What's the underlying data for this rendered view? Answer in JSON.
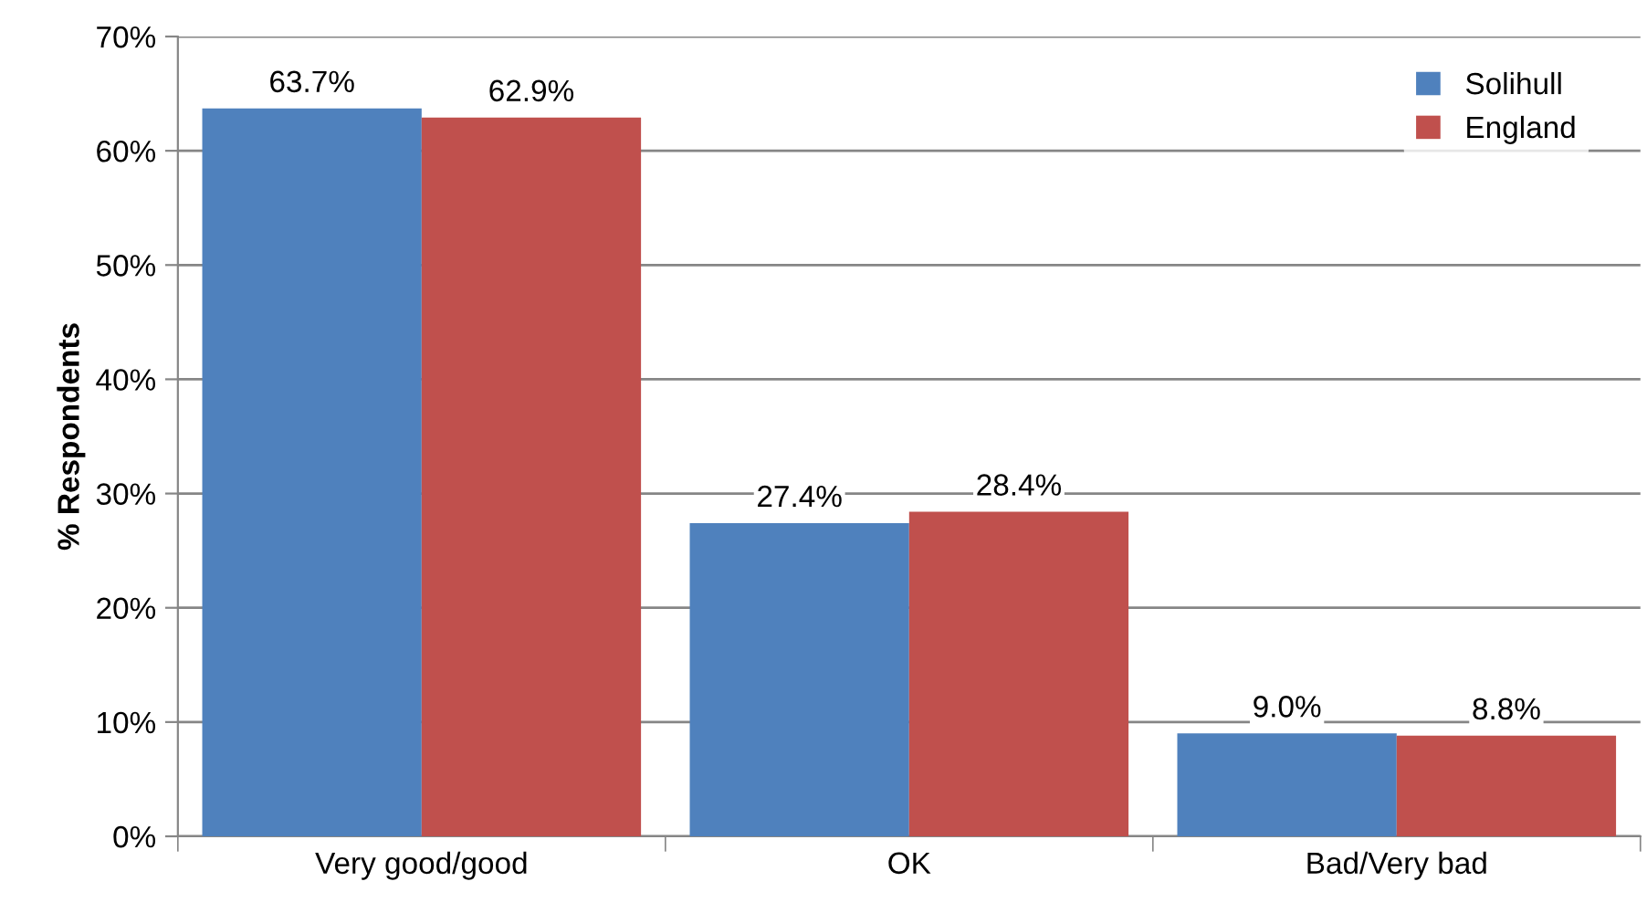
{
  "chart_data": {
    "type": "bar",
    "ylabel": "% Respondents",
    "categories": [
      "Very good/good",
      "OK",
      "Bad/Very bad"
    ],
    "series": [
      {
        "name": "Solihull",
        "color": "#4f81bd",
        "values": [
          63.7,
          27.4,
          9.0
        ],
        "value_labels": [
          "63.7%",
          "27.4%",
          "9.0%"
        ]
      },
      {
        "name": "England",
        "color": "#c0504d",
        "values": [
          62.9,
          28.4,
          8.8
        ],
        "value_labels": [
          "62.9%",
          "28.4%",
          "8.8%"
        ]
      }
    ],
    "ylim": [
      0,
      70
    ],
    "yticks": [
      {
        "value": 0,
        "label": "0%"
      },
      {
        "value": 10,
        "label": "10%"
      },
      {
        "value": 20,
        "label": "20%"
      },
      {
        "value": 30,
        "label": "30%"
      },
      {
        "value": 40,
        "label": "40%"
      },
      {
        "value": 50,
        "label": "50%"
      },
      {
        "value": 60,
        "label": "60%"
      },
      {
        "value": 70,
        "label": "70%"
      }
    ],
    "grid": "y",
    "legend": "top right"
  }
}
